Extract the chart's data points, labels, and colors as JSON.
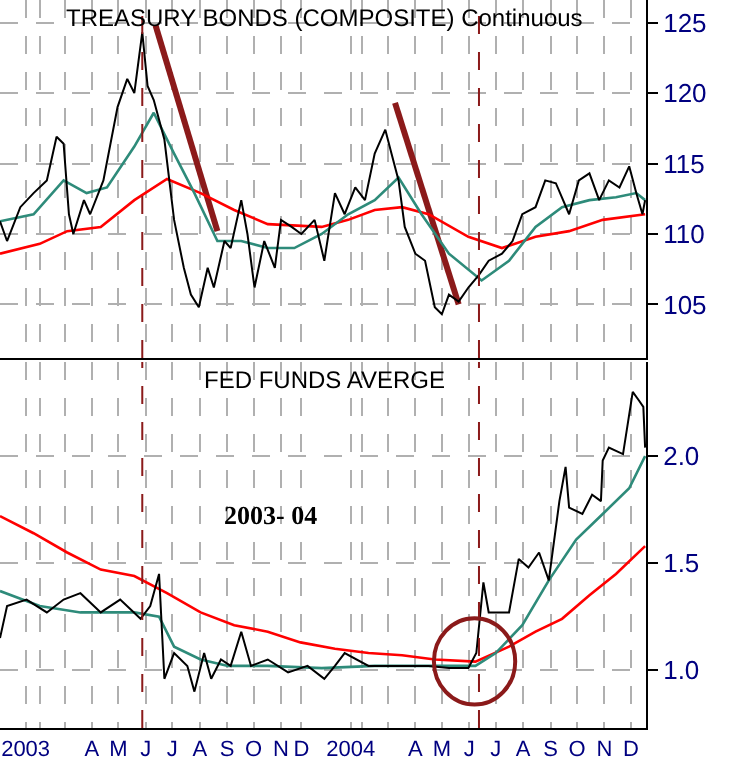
{
  "chart_data": [
    {
      "type": "line",
      "title": "TREASURY BONDS (COMPOSITE) Continuous",
      "xlim": [
        "2003-01-01",
        "2005-01-01"
      ],
      "ylim": [
        101.2,
        126.6
      ],
      "yticks": [
        105,
        110,
        115,
        120,
        125
      ],
      "grid": true,
      "tick_labels": "y",
      "xticks": [
        {
          "value": "2003-01-30",
          "label": null
        },
        {
          "value": "2003-02-15",
          "label": null
        },
        {
          "value": "2003-03-15",
          "label": null
        },
        {
          "value": "2003-04-15",
          "label": null
        },
        {
          "value": "2003-05-15",
          "label": null
        },
        {
          "value": "2003-06-15",
          "label": null
        },
        {
          "value": "2003-07-15",
          "label": null
        },
        {
          "value": "2003-08-15",
          "label": null
        },
        {
          "value": "2003-09-15",
          "label": null
        },
        {
          "value": "2003-10-15",
          "label": null
        },
        {
          "value": "2003-11-15",
          "label": null
        },
        {
          "value": "2003-12-08",
          "label": null
        },
        {
          "value": "2004-02-02",
          "label": null
        },
        {
          "value": "2004-02-15",
          "label": null
        },
        {
          "value": "2004-03-15",
          "label": null
        },
        {
          "value": "2004-04-15",
          "label": null
        },
        {
          "value": "2004-05-15",
          "label": null
        },
        {
          "value": "2004-06-15",
          "label": null
        },
        {
          "value": "2004-07-15",
          "label": null
        },
        {
          "value": "2004-08-15",
          "label": null
        },
        {
          "value": "2004-09-15",
          "label": null
        },
        {
          "value": "2004-10-15",
          "label": null
        },
        {
          "value": "2004-11-15",
          "label": null
        },
        {
          "value": "2004-12-15",
          "label": null
        }
      ],
      "ref_lines": [
        {
          "axis": "x",
          "value": "2003-06-11",
          "color": "#8b1a1a",
          "line_style": "dashed"
        },
        {
          "axis": "x",
          "value": "2004-06-26",
          "color": "#8b1a1a",
          "line_style": "dashed"
        }
      ],
      "series": [
        {
          "color": "#000000",
          "x": [
            "2003-01-01",
            "2003-01-09",
            "2003-01-24",
            "2003-02-08",
            "2003-02-23",
            "2003-03-06",
            "2003-03-14",
            "2003-03-20",
            "2003-03-25",
            "2003-04-06",
            "2003-04-13",
            "2003-04-28",
            "2003-05-14",
            "2003-05-25",
            "2003-06-02",
            "2003-06-11",
            "2003-06-17",
            "2003-06-24",
            "2003-07-06",
            "2003-07-17",
            "2003-07-28",
            "2003-08-05",
            "2003-08-14",
            "2003-08-24",
            "2003-08-31",
            "2003-09-12",
            "2003-09-19",
            "2003-10-01",
            "2003-10-08",
            "2003-10-16",
            "2003-10-27",
            "2003-11-08",
            "2003-11-15",
            "2003-11-27",
            "2003-12-08",
            "2003-12-23",
            "2004-01-03",
            "2004-01-15",
            "2004-01-26",
            "2004-02-07",
            "2004-02-18",
            "2004-02-29",
            "2004-03-12",
            "2004-03-19",
            "2004-03-27",
            "2004-04-03",
            "2004-04-15",
            "2004-04-26",
            "2004-05-07",
            "2004-05-15",
            "2004-05-23",
            "2004-06-03",
            "2004-06-14",
            "2004-06-26",
            "2004-07-07",
            "2004-07-22",
            "2004-08-03",
            "2004-08-14",
            "2004-08-29",
            "2004-09-09",
            "2004-09-21",
            "2004-10-06",
            "2004-10-17",
            "2004-10-29",
            "2004-11-09",
            "2004-11-20",
            "2004-12-02",
            "2004-12-13",
            "2004-12-21",
            "2004-12-28",
            "2004-12-31"
          ],
          "values": [
            110.9,
            109.5,
            111.9,
            112.9,
            113.8,
            116.9,
            116.4,
            111.4,
            110.0,
            112.4,
            111.4,
            113.8,
            119.0,
            121.0,
            120.0,
            124.3,
            120.5,
            119.5,
            116.7,
            111.0,
            107.6,
            105.7,
            104.8,
            107.6,
            106.2,
            109.5,
            109.0,
            112.4,
            110.0,
            106.2,
            109.5,
            107.6,
            111.0,
            110.5,
            110.0,
            111.0,
            108.1,
            112.9,
            111.4,
            113.3,
            112.4,
            115.7,
            117.4,
            115.7,
            113.8,
            110.5,
            108.6,
            108.1,
            104.8,
            104.3,
            105.7,
            105.2,
            106.2,
            107.1,
            108.1,
            108.6,
            109.5,
            111.4,
            111.9,
            113.8,
            113.6,
            111.4,
            113.8,
            114.3,
            112.4,
            113.8,
            113.3,
            114.8,
            112.9,
            111.4,
            112.4
          ]
        },
        {
          "color": "#2e8b7a",
          "x": [
            "2003-01-01",
            "2003-02-08",
            "2003-03-14",
            "2003-04-09",
            "2003-05-02",
            "2003-06-02",
            "2003-06-24",
            "2003-07-17",
            "2003-08-09",
            "2003-09-04",
            "2003-10-01",
            "2003-10-31",
            "2003-11-30",
            "2003-12-31",
            "2004-01-30",
            "2004-02-29",
            "2004-03-27",
            "2004-04-22",
            "2004-05-23",
            "2004-06-29",
            "2004-07-30",
            "2004-08-29",
            "2004-09-28",
            "2004-10-29",
            "2004-11-28",
            "2004-12-21",
            "2004-12-31"
          ],
          "values": [
            110.9,
            111.4,
            113.8,
            112.9,
            113.3,
            116.2,
            118.6,
            115.7,
            112.9,
            109.5,
            109.5,
            109.0,
            109.0,
            110.0,
            111.4,
            112.4,
            114.0,
            111.4,
            108.6,
            106.7,
            108.1,
            110.5,
            111.9,
            112.4,
            112.6,
            112.9,
            112.4
          ]
        },
        {
          "color": "#ff0000",
          "x": [
            "2003-01-01",
            "2003-02-15",
            "2003-03-18",
            "2003-04-25",
            "2003-06-02",
            "2003-07-09",
            "2003-08-16",
            "2003-09-23",
            "2003-10-31",
            "2003-12-31",
            "2004-01-30",
            "2004-02-29",
            "2004-03-31",
            "2004-04-30",
            "2004-06-14",
            "2004-07-22",
            "2004-08-29",
            "2004-10-06",
            "2004-11-13",
            "2004-12-31"
          ],
          "values": [
            108.6,
            109.3,
            110.2,
            110.5,
            112.4,
            113.9,
            112.9,
            111.7,
            110.7,
            110.5,
            111.0,
            111.7,
            111.9,
            111.4,
            109.8,
            109.0,
            109.8,
            110.2,
            111.0,
            111.4
          ]
        },
        {
          "type": "line",
          "color": "#8b1a1a",
          "x": [
            "2003-06-26",
            "2003-09-04"
          ],
          "values": [
            124.8,
            110.2
          ]
        },
        {
          "type": "line",
          "color": "#8b1a1a",
          "x": [
            "2004-03-23",
            "2004-06-03"
          ],
          "values": [
            119.3,
            105.0
          ]
        }
      ]
    },
    {
      "type": "line",
      "title": "FED FUNDS AVERGE",
      "annotations": [
        "2003- 04"
      ],
      "xlim": [
        "2003-01-01",
        "2005-01-01"
      ],
      "ylim": [
        0.73,
        2.44
      ],
      "yticks": [
        {
          "value": 1,
          "label": "1.0"
        },
        {
          "value": 1.5,
          "label": "1.5"
        },
        {
          "value": 2,
          "label": "2.0"
        }
      ],
      "grid": true,
      "xticks": [
        {
          "value": "2003-01-30",
          "label": "2003"
        },
        {
          "value": "2003-02-15",
          "label": null
        },
        {
          "value": "2003-03-15",
          "label": null
        },
        {
          "value": "2003-04-15",
          "label": "A"
        },
        {
          "value": "2003-05-15",
          "label": "M"
        },
        {
          "value": "2003-06-15",
          "label": "J"
        },
        {
          "value": "2003-07-15",
          "label": "J"
        },
        {
          "value": "2003-08-15",
          "label": "A"
        },
        {
          "value": "2003-09-15",
          "label": "S"
        },
        {
          "value": "2003-10-15",
          "label": "O"
        },
        {
          "value": "2003-11-15",
          "label": "N"
        },
        {
          "value": "2003-12-08",
          "label": "D"
        },
        {
          "value": "2004-02-02",
          "label": "2004"
        },
        {
          "value": "2004-02-15",
          "label": null
        },
        {
          "value": "2004-03-15",
          "label": null
        },
        {
          "value": "2004-04-15",
          "label": "A"
        },
        {
          "value": "2004-05-15",
          "label": "M"
        },
        {
          "value": "2004-06-15",
          "label": "J"
        },
        {
          "value": "2004-07-15",
          "label": "J"
        },
        {
          "value": "2004-08-15",
          "label": "A"
        },
        {
          "value": "2004-09-15",
          "label": "S"
        },
        {
          "value": "2004-10-15",
          "label": "O"
        },
        {
          "value": "2004-11-15",
          "label": "N"
        },
        {
          "value": "2004-12-15",
          "label": "D"
        }
      ],
      "ref_lines": [
        {
          "axis": "x",
          "value": "2003-06-11",
          "color": "#8b1a1a",
          "line_style": "dashed"
        },
        {
          "axis": "x",
          "value": "2004-06-26",
          "color": "#8b1a1a",
          "line_style": "dashed"
        }
      ],
      "series": [
        {
          "color": "#000000",
          "x": [
            "2003-01-01",
            "2003-01-09",
            "2003-01-31",
            "2003-02-23",
            "2003-03-14",
            "2003-04-02",
            "2003-04-25",
            "2003-05-17",
            "2003-06-09",
            "2003-06-20",
            "2003-06-30",
            "2003-07-06",
            "2003-07-17",
            "2003-08-01",
            "2003-08-09",
            "2003-08-20",
            "2003-08-28",
            "2003-09-08",
            "2003-09-19",
            "2003-10-01",
            "2003-10-12",
            "2003-10-31",
            "2003-11-23",
            "2003-12-15",
            "2004-01-03",
            "2004-01-15",
            "2004-01-26",
            "2004-02-22",
            "2004-03-31",
            "2004-04-30",
            "2004-05-23",
            "2004-06-14",
            "2004-06-23",
            "2004-07-01",
            "2004-07-07",
            "2004-07-30",
            "2004-08-10",
            "2004-08-21",
            "2004-09-02",
            "2004-09-13",
            "2004-09-25",
            "2004-10-02",
            "2004-10-06",
            "2004-10-21",
            "2004-11-01",
            "2004-11-11",
            "2004-11-13",
            "2004-11-20",
            "2004-12-06",
            "2004-12-17",
            "2004-12-24",
            "2004-12-29",
            "2004-12-31"
          ],
          "values": [
            1.15,
            1.3,
            1.33,
            1.27,
            1.33,
            1.36,
            1.27,
            1.33,
            1.24,
            1.3,
            1.45,
            0.96,
            1.08,
            1.02,
            0.9,
            1.08,
            0.96,
            1.05,
            1.02,
            1.18,
            1.02,
            1.05,
            0.99,
            1.02,
            0.96,
            1.02,
            1.08,
            1.02,
            1.02,
            1.02,
            1.01,
            1.01,
            1.08,
            1.41,
            1.27,
            1.27,
            1.52,
            1.48,
            1.55,
            1.42,
            1.79,
            1.95,
            1.76,
            1.73,
            1.82,
            1.79,
            1.98,
            2.04,
            2.01,
            2.3,
            2.26,
            2.23,
            2.04
          ]
        },
        {
          "color": "#2e8b7a",
          "x": [
            "2003-01-01",
            "2003-02-15",
            "2003-04-02",
            "2003-06-02",
            "2003-06-30",
            "2003-07-17",
            "2003-08-16",
            "2003-09-16",
            "2003-10-31",
            "2003-12-31",
            "2004-02-29",
            "2004-04-30",
            "2004-06-22",
            "2004-07-15",
            "2004-08-14",
            "2004-09-13",
            "2004-10-14",
            "2004-11-13",
            "2004-12-13",
            "2004-12-31"
          ],
          "values": [
            1.37,
            1.3,
            1.27,
            1.27,
            1.25,
            1.11,
            1.05,
            1.02,
            1.02,
            1.01,
            1.02,
            1.02,
            1.02,
            1.08,
            1.21,
            1.42,
            1.61,
            1.73,
            1.85,
            2.0
          ]
        },
        {
          "color": "#ff0000",
          "x": [
            "2003-01-01",
            "2003-02-08",
            "2003-03-18",
            "2003-04-25",
            "2003-06-02",
            "2003-07-09",
            "2003-08-16",
            "2003-09-23",
            "2003-10-31",
            "2003-12-07",
            "2004-01-15",
            "2004-02-22",
            "2004-03-31",
            "2004-05-07",
            "2004-06-22",
            "2004-07-30",
            "2004-08-29",
            "2004-09-28",
            "2004-10-29",
            "2004-11-28",
            "2004-12-31"
          ],
          "values": [
            1.72,
            1.64,
            1.55,
            1.47,
            1.44,
            1.36,
            1.27,
            1.21,
            1.18,
            1.13,
            1.1,
            1.08,
            1.07,
            1.05,
            1.04,
            1.11,
            1.18,
            1.24,
            1.35,
            1.45,
            1.58
          ]
        }
      ]
    }
  ]
}
